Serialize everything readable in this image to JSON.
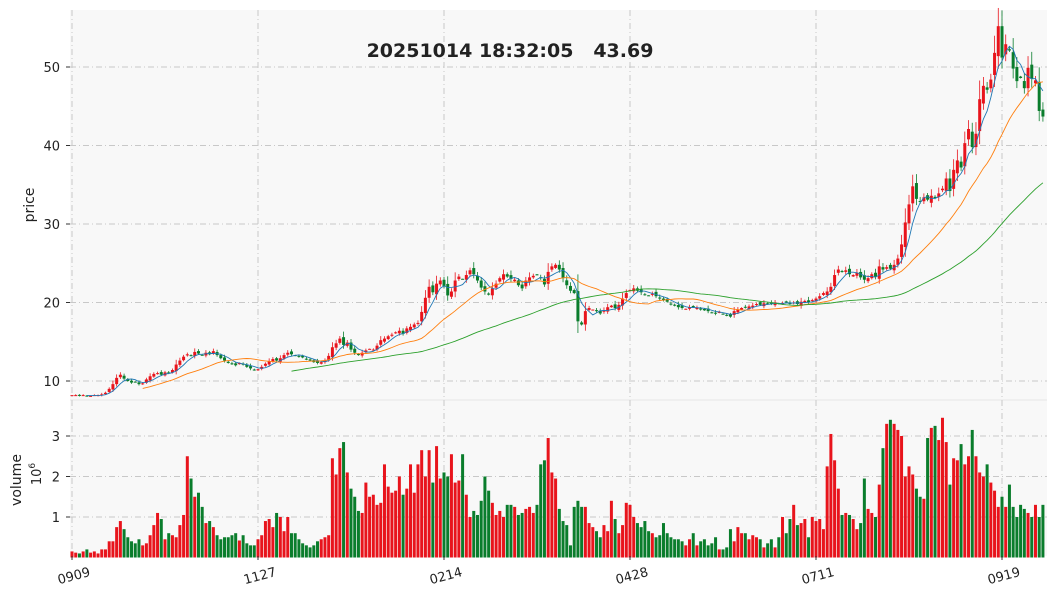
{
  "chart_data": {
    "type": "candlestick",
    "title": "20251014 18:32:05   43.69",
    "price_panel": {
      "ylabel": "price",
      "ylim": [
        7.6,
        57.3
      ],
      "yticks": [
        10,
        20,
        30,
        40,
        50
      ]
    },
    "volume_panel": {
      "ylabel": "volume",
      "scale_label": "10^6",
      "ylim": [
        0,
        3.5
      ],
      "yticks": [
        1,
        2,
        3
      ]
    },
    "x_tick_labels": [
      {
        "index": 0,
        "label": "0909"
      },
      {
        "index": 50,
        "label": "1127"
      },
      {
        "index": 100,
        "label": "0214"
      },
      {
        "index": 150,
        "label": "0428"
      },
      {
        "index": 200,
        "label": "0711"
      },
      {
        "index": 250,
        "label": "0919"
      }
    ],
    "moving_averages": [
      {
        "name": "MA5",
        "window": 5,
        "color": "#1f77b4"
      },
      {
        "name": "MA20",
        "window": 20,
        "color": "#ff7f0e"
      },
      {
        "name": "MA60",
        "window": 60,
        "color": "#2ca02c"
      }
    ],
    "colors": {
      "up": "#e8141c",
      "down": "#0a7d2c",
      "background": "#f8f8f8",
      "grid": "#c8c8c8"
    },
    "close": [
      8.2,
      8.2,
      8.1,
      8.2,
      8.1,
      8.1,
      8.2,
      8.2,
      8.3,
      8.5,
      9.0,
      9.6,
      10.4,
      10.8,
      10.3,
      10.0,
      9.8,
      9.9,
      9.6,
      9.7,
      10.2,
      10.6,
      10.9,
      11.0,
      10.8,
      11.1,
      11.0,
      11.4,
      12.1,
      12.6,
      13.1,
      13.4,
      13.2,
      13.7,
      13.5,
      13.3,
      13.6,
      13.4,
      13.8,
      13.3,
      12.9,
      12.6,
      12.3,
      12.2,
      12.0,
      12.3,
      12.1,
      11.8,
      11.6,
      11.4,
      11.5,
      11.8,
      12.2,
      12.5,
      12.8,
      12.6,
      12.9,
      13.3,
      13.6,
      13.4,
      13.2,
      13.1,
      13.0,
      12.8,
      12.6,
      12.4,
      12.3,
      12.4,
      12.6,
      13.2,
      14.3,
      14.8,
      15.4,
      14.6,
      14.9,
      14.0,
      13.6,
      13.3,
      13.6,
      13.9,
      14.1,
      14.0,
      14.5,
      15.2,
      15.4,
      15.7,
      15.9,
      16.2,
      16.4,
      16.0,
      16.7,
      16.9,
      17.2,
      17.4,
      18.8,
      20.6,
      22.0,
      21.3,
      22.4,
      22.8,
      22.1,
      20.9,
      21.4,
      22.8,
      23.3,
      23.0,
      23.5,
      24.1,
      23.6,
      22.8,
      21.9,
      21.4,
      21.0,
      21.8,
      22.4,
      23.1,
      23.6,
      23.3,
      23.0,
      22.9,
      22.2,
      21.8,
      22.8,
      23.2,
      23.4,
      23.5,
      23.1,
      22.3,
      23.9,
      24.6,
      24.8,
      24.2,
      23.1,
      22.2,
      21.5,
      21.2,
      17.6,
      17.2,
      18.9,
      19.3,
      19.1,
      18.9,
      18.6,
      19.0,
      19.4,
      19.6,
      19.3,
      19.7,
      20.5,
      21.2,
      21.6,
      21.8,
      21.5,
      21.3,
      21.0,
      20.9,
      21.1,
      20.8,
      20.5,
      20.3,
      20.1,
      19.8,
      19.6,
      19.4,
      19.3,
      19.2,
      19.4,
      19.5,
      19.3,
      19.1,
      19.0,
      18.9,
      18.7,
      18.6,
      18.8,
      18.5,
      18.4,
      18.2,
      18.9,
      19.1,
      19.3,
      19.4,
      19.5,
      19.6,
      19.8,
      19.7,
      19.9,
      19.8,
      19.9,
      20.0,
      19.8,
      19.9,
      20.1,
      19.9,
      20.0,
      19.8,
      20.1,
      20.2,
      20.0,
      20.3,
      20.5,
      20.8,
      21.2,
      21.4,
      22.0,
      23.5,
      24.2,
      23.9,
      24.1,
      23.6,
      23.5,
      23.8,
      23.2,
      22.9,
      23.1,
      23.6,
      23.3,
      24.6,
      24.2,
      24.5,
      24.3,
      24.8,
      25.6,
      27.4,
      30.2,
      32.5,
      34.8,
      33.2,
      32.9,
      33.4,
      33.1,
      33.6,
      33.3,
      33.9,
      34.5,
      35.8,
      34.2,
      36.9,
      38.1,
      37.2,
      40.3,
      42.1,
      39.8,
      41.5,
      45.9,
      47.6,
      47.1,
      48.4,
      51.8,
      55.2,
      51.2,
      52.9,
      52.1,
      49.8,
      48.2,
      48.6,
      47.3,
      49.9,
      48.5,
      48.3,
      44.4,
      43.69
    ],
    "volume_millions": [
      0.15,
      0.12,
      0.1,
      0.15,
      0.2,
      0.12,
      0.15,
      0.1,
      0.2,
      0.2,
      0.4,
      0.4,
      0.75,
      0.9,
      0.7,
      0.5,
      0.4,
      0.35,
      0.45,
      0.3,
      0.35,
      0.55,
      0.8,
      1.1,
      0.95,
      0.45,
      0.6,
      0.55,
      0.5,
      0.8,
      1.05,
      2.5,
      1.95,
      1.5,
      1.6,
      1.25,
      0.85,
      0.9,
      0.75,
      0.55,
      0.45,
      0.5,
      0.5,
      0.55,
      0.6,
      0.42,
      0.55,
      0.35,
      0.3,
      0.3,
      0.45,
      0.55,
      0.9,
      0.95,
      0.75,
      1.1,
      1.0,
      0.65,
      1.0,
      0.6,
      0.6,
      0.45,
      0.35,
      0.3,
      0.25,
      0.3,
      0.4,
      0.45,
      0.5,
      0.55,
      2.45,
      2.05,
      2.7,
      2.85,
      2.1,
      1.7,
      1.5,
      1.15,
      1.1,
      1.85,
      1.5,
      1.55,
      1.3,
      1.35,
      2.3,
      1.75,
      1.6,
      1.65,
      2.0,
      1.55,
      1.7,
      2.3,
      1.6,
      2.3,
      2.65,
      2.0,
      2.65,
      1.85,
      2.75,
      1.95,
      2.1,
      2.0,
      2.55,
      1.85,
      1.9,
      2.55,
      1.55,
      1.0,
      1.15,
      1.05,
      1.4,
      2.0,
      1.65,
      1.35,
      1.05,
      1.15,
      1.0,
      1.3,
      1.3,
      1.25,
      1.05,
      1.1,
      1.2,
      1.25,
      1.1,
      1.3,
      2.3,
      2.4,
      2.95,
      2.1,
      1.95,
      1.2,
      0.9,
      0.8,
      0.3,
      1.25,
      1.4,
      1.25,
      1.25,
      0.85,
      0.75,
      0.65,
      0.5,
      0.8,
      0.65,
      1.4,
      0.95,
      0.6,
      0.8,
      1.35,
      1.3,
      1.0,
      0.85,
      0.75,
      0.9,
      0.65,
      0.6,
      0.5,
      0.55,
      0.85,
      0.6,
      0.5,
      0.45,
      0.45,
      0.4,
      0.3,
      0.45,
      0.6,
      0.3,
      0.4,
      0.45,
      0.3,
      0.35,
      0.5,
      0.2,
      0.2,
      0.25,
      0.7,
      0.4,
      0.75,
      0.6,
      0.6,
      0.45,
      0.55,
      0.5,
      0.45,
      0.25,
      0.35,
      0.45,
      0.25,
      0.5,
      1.0,
      0.6,
      0.95,
      1.3,
      0.8,
      0.85,
      0.95,
      0.5,
      1.0,
      0.9,
      0.95,
      0.7,
      2.25,
      3.05,
      2.4,
      1.7,
      1.05,
      1.1,
      1.05,
      0.95,
      0.7,
      0.85,
      1.95,
      1.2,
      1.1,
      1.0,
      1.8,
      2.7,
      3.3,
      3.4,
      3.3,
      3.15,
      3.0,
      2.0,
      2.25,
      2.05,
      1.7,
      1.5,
      1.45,
      2.95,
      3.2,
      3.25,
      2.9,
      3.45,
      2.85,
      1.8,
      2.45,
      2.4,
      2.8,
      2.3,
      2.5,
      3.15,
      2.5,
      2.1,
      2.0,
      2.3,
      1.85,
      1.65,
      1.25,
      1.5,
      1.25,
      1.8,
      1.25,
      1.0,
      1.3,
      1.2,
      1.1,
      1.0,
      1.3,
      1.0,
      1.3
    ]
  }
}
